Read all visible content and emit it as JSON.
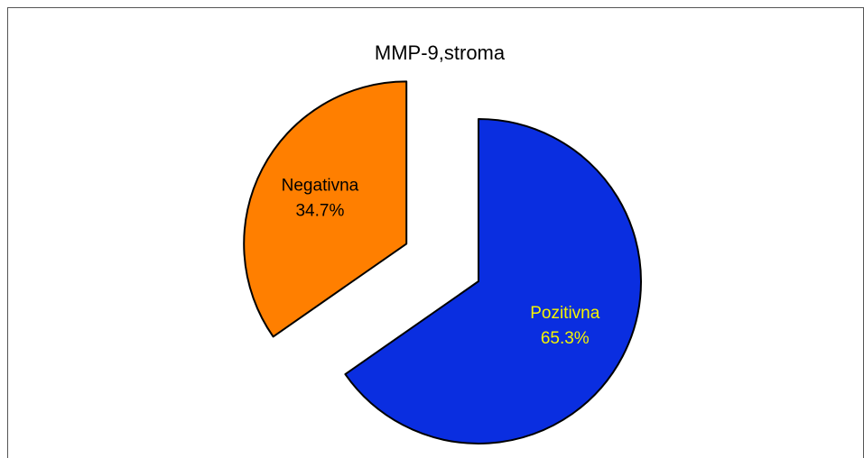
{
  "chart_data": {
    "type": "pie",
    "title": "MMP-9,stroma",
    "categories": [
      "Pozitivna",
      "Negativna"
    ],
    "values": [
      65.3,
      34.7
    ],
    "value_labels": [
      "65.3%",
      "34.7%"
    ],
    "colors": [
      "#0a2ee0",
      "#ff7f00"
    ],
    "label_colors": [
      "#f5f500",
      "#000000"
    ],
    "exploded": [
      false,
      true
    ]
  }
}
